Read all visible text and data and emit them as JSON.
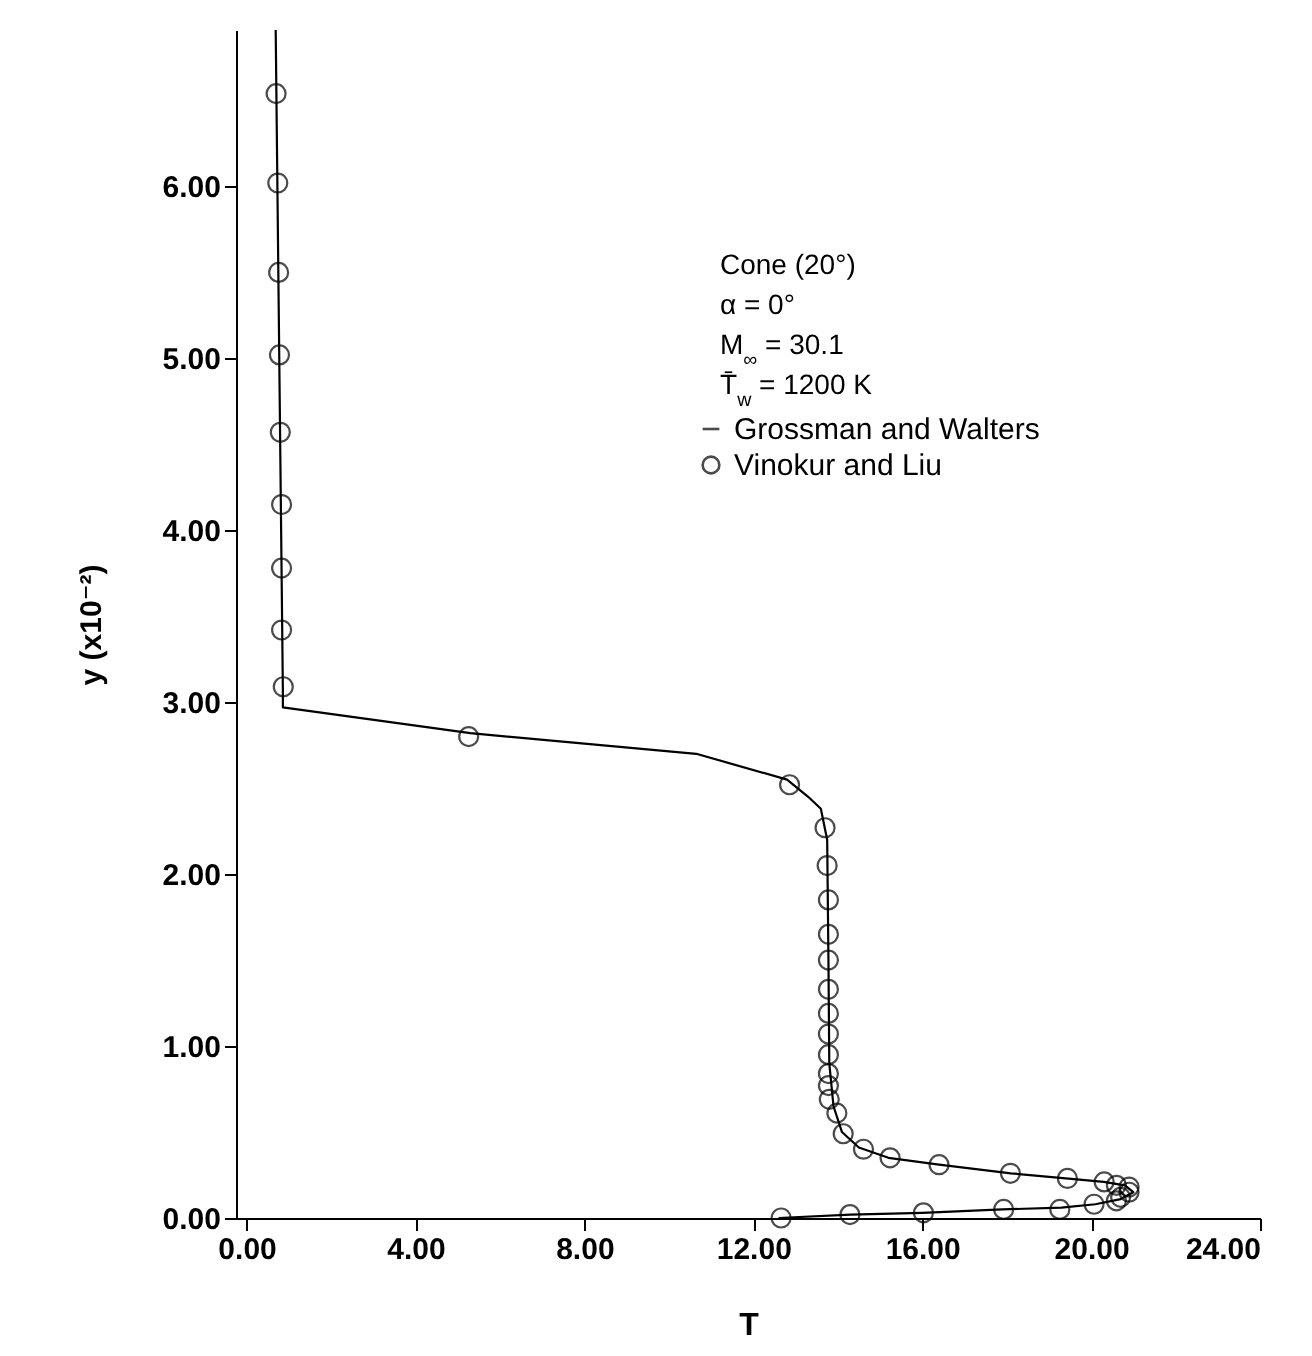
{
  "chart_data": {
    "type": "line",
    "xlabel": "T",
    "ylabel": "y (x10⁻²)",
    "annotations": [
      "Cone (20°)",
      "α = 0°",
      "M$_{∞}$ = 30.1",
      "T̄$_{w}$ = 1200 K"
    ],
    "xlim": [
      -0.25,
      24
    ],
    "ylim": [
      0,
      6.91
    ],
    "xticks": [
      {
        "value": 0,
        "label": "0.00"
      },
      {
        "value": 4,
        "label": "4.00"
      },
      {
        "value": 8,
        "label": "8.00"
      },
      {
        "value": 12,
        "label": "12.00"
      },
      {
        "value": 16,
        "label": "16.00"
      },
      {
        "value": 20,
        "label": "20.00"
      },
      {
        "value": 24,
        "label": "24.00"
      }
    ],
    "yticks": [
      {
        "value": 0,
        "label": "0.00"
      },
      {
        "value": 1,
        "label": "1.00"
      },
      {
        "value": 2,
        "label": "2.00"
      },
      {
        "value": 3,
        "label": "3.00"
      },
      {
        "value": 4,
        "label": "4.00"
      },
      {
        "value": 5,
        "label": "5.00"
      },
      {
        "value": 6,
        "label": "6.00"
      }
    ],
    "grid": false,
    "legend": "top right",
    "series": [
      {
        "name": "Grossman and Walters",
        "color": "#000000",
        "marker": "none",
        "x": [
          12.6,
          14.3,
          16.0,
          17.9,
          19.3,
          20.1,
          20.7,
          21.0,
          20.8,
          20.3,
          19.4,
          18.1,
          16.4,
          15.2,
          14.5,
          14.1,
          13.9,
          13.8,
          13.78,
          13.75,
          13.6,
          13.3,
          12.8,
          10.65,
          5.3,
          0.86,
          0.86,
          0.69
        ],
        "values": [
          0,
          0.02,
          0.03,
          0.05,
          0.06,
          0.08,
          0.11,
          0.15,
          0.19,
          0.21,
          0.23,
          0.26,
          0.31,
          0.35,
          0.41,
          0.5,
          0.65,
          0.9,
          1.5,
          2.2,
          2.38,
          2.45,
          2.55,
          2.7,
          2.82,
          2.97,
          3.07,
          6.91
        ]
      },
      {
        "name": "Vinokur and Liu",
        "type": "scatter",
        "color": "#000000",
        "marker": "circle",
        "x": [
          0.7,
          0.74,
          0.76,
          0.78,
          0.8,
          0.83,
          0.83,
          0.83,
          0.87,
          5.26,
          12.86,
          13.7,
          13.75,
          13.78,
          13.78,
          13.78,
          13.78,
          13.78,
          13.78,
          13.78,
          13.78,
          13.78,
          13.8,
          13.98,
          14.13,
          14.61,
          15.24,
          16.4,
          18.09,
          19.44,
          20.31,
          20.6,
          20.9,
          20.9,
          20.7,
          20.6,
          20.07,
          19.26,
          17.93,
          16.03,
          14.29,
          12.66
        ],
        "values": [
          6.54,
          6.02,
          5.5,
          5.02,
          4.57,
          4.15,
          3.78,
          3.42,
          3.09,
          2.8,
          2.52,
          2.27,
          2.05,
          1.85,
          1.65,
          1.5,
          1.33,
          1.19,
          1.07,
          0.95,
          0.84,
          0.77,
          0.69,
          0.61,
          0.49,
          0.4,
          0.35,
          0.31,
          0.26,
          0.23,
          0.21,
          0.19,
          0.18,
          0.15,
          0.12,
          0.1,
          0.08,
          0.05,
          0.05,
          0.03,
          0.02,
          0.0
        ]
      }
    ]
  }
}
